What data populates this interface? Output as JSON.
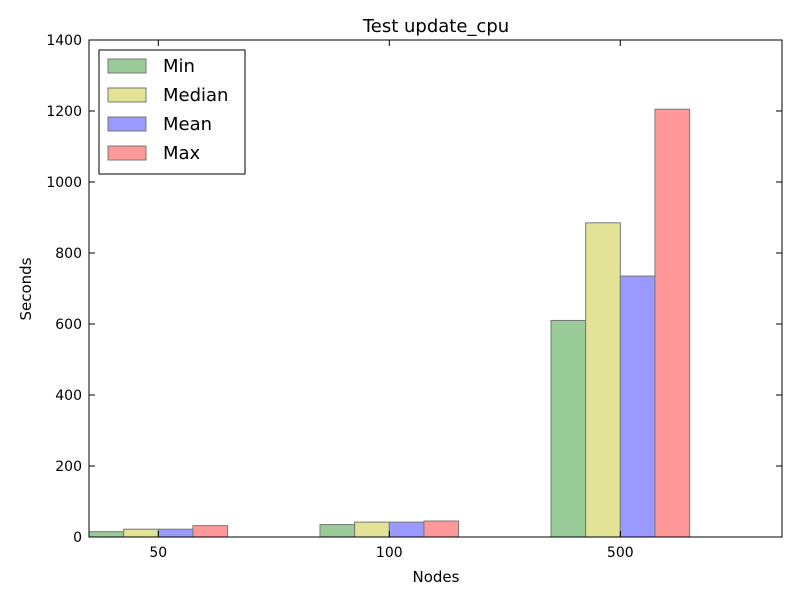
{
  "chart_data": {
    "type": "bar",
    "title": "Test update_cpu",
    "xlabel": "Nodes",
    "ylabel": "Seconds",
    "categories": [
      "50",
      "100",
      "500"
    ],
    "ylim": [
      0,
      1400
    ],
    "yticks": [
      0,
      200,
      400,
      600,
      800,
      1000,
      1200,
      1400
    ],
    "grid": false,
    "legend_position": "top-left",
    "series": [
      {
        "name": "Min",
        "color": "#99cc99",
        "values": [
          15,
          35,
          610
        ]
      },
      {
        "name": "Median",
        "color": "#e3e397",
        "values": [
          22,
          42,
          885
        ]
      },
      {
        "name": "Mean",
        "color": "#9999ff",
        "values": [
          22,
          42,
          735
        ]
      },
      {
        "name": "Max",
        "color": "#ff9999",
        "values": [
          32,
          45,
          1205
        ]
      }
    ]
  }
}
